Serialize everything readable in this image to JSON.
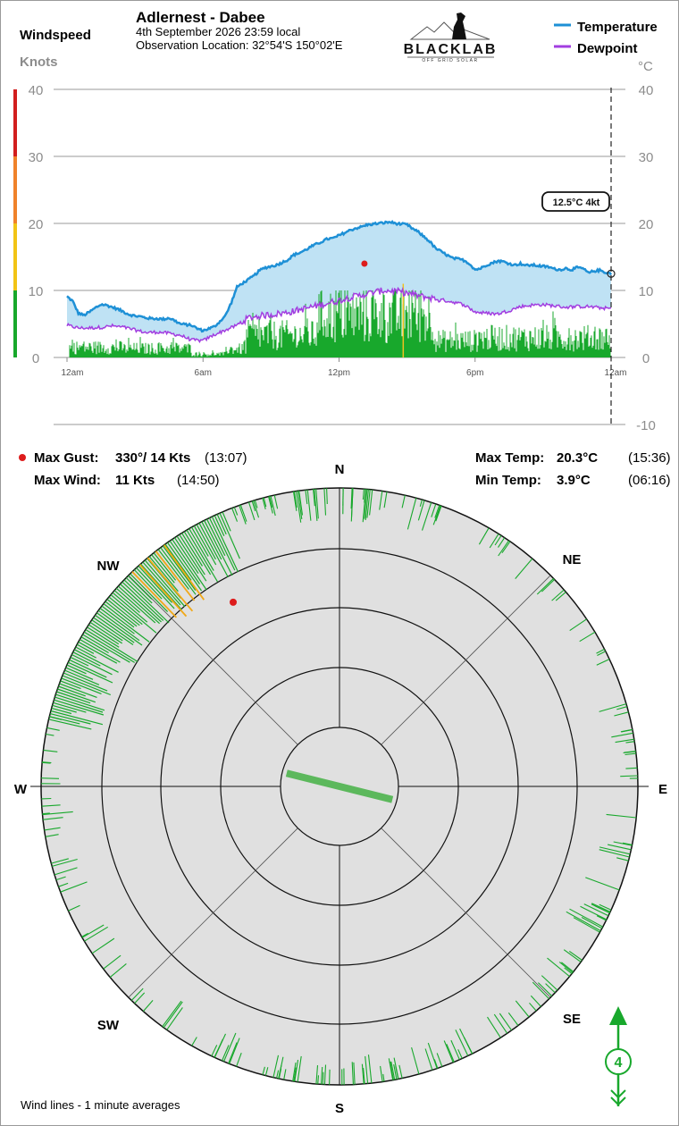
{
  "header": {
    "title": "Adlernest - Dabee",
    "date_line": "4th September 2026  23:59 local",
    "location_line": "Observation Location: 32°54'S 150°02'E",
    "left_axis_title": "Windspeed",
    "left_axis_unit": "Knots",
    "right_axis_unit": "°C"
  },
  "logo": {
    "name": "BLACKLAB",
    "tagline": "OFF GRID SOLAR"
  },
  "legend": [
    {
      "label": "Temperature",
      "color": "#1e90d6"
    },
    {
      "label": "Dewpoint",
      "color": "#a23ee0"
    }
  ],
  "colors": {
    "wind": "#18a82c",
    "gust_wind": "#f0a818",
    "temp_fill": "#bfe2f4",
    "temp_line": "#1e90d6",
    "dew_line": "#a23ee0",
    "gust_dot": "#dd1c1c",
    "rose_bg": "#e0e0e0"
  },
  "chart_data": [
    {
      "type": "area",
      "series": [
        {
          "name": "Temperature",
          "unit": "°C",
          "x_hours": [
            0,
            0.25,
            0.5,
            0.75,
            1,
            1.25,
            1.5,
            1.75,
            2,
            2.25,
            2.5,
            2.75,
            3,
            3.25,
            3.5,
            3.75,
            4,
            4.25,
            4.5,
            4.75,
            5,
            5.25,
            5.5,
            5.75,
            6,
            6.25,
            6.5,
            6.75,
            7,
            7.25,
            7.5,
            7.75,
            8,
            8.25,
            8.5,
            8.75,
            9,
            9.25,
            9.5,
            9.75,
            10,
            10.25,
            10.5,
            10.75,
            11,
            11.25,
            11.5,
            11.75,
            12,
            12.25,
            12.5,
            12.75,
            13,
            13.25,
            13.5,
            13.75,
            14,
            14.25,
            14.5,
            14.75,
            15,
            15.25,
            15.5,
            15.75,
            16,
            16.25,
            16.5,
            16.75,
            17,
            17.25,
            17.5,
            17.75,
            18,
            18.25,
            18.5,
            18.75,
            19,
            19.25,
            19.5,
            19.75,
            20,
            20.25,
            20.5,
            20.75,
            21,
            21.25,
            21.5,
            21.75,
            22,
            22.25,
            22.5,
            22.75,
            23,
            23.25,
            23.5,
            23.75,
            24
          ],
          "values": [
            9.1,
            8.4,
            6.6,
            6.3,
            6.8,
            7.4,
            7.9,
            7.8,
            7.5,
            7.2,
            6.8,
            6.4,
            6.2,
            6.1,
            5.9,
            5.8,
            5.8,
            5.7,
            5.9,
            5.5,
            5.0,
            4.9,
            4.8,
            4.3,
            4.0,
            4.3,
            4.6,
            5.4,
            6.3,
            8.2,
            10.5,
            11.1,
            11.6,
            12.2,
            13.0,
            13.4,
            13.6,
            13.8,
            14.2,
            14.6,
            15.3,
            15.6,
            16.0,
            16.5,
            16.9,
            17.3,
            17.7,
            17.8,
            18.2,
            18.6,
            19.0,
            19.3,
            19.5,
            19.8,
            19.9,
            20.0,
            20.1,
            20.2,
            20.0,
            19.9,
            19.8,
            19.2,
            18.7,
            18.0,
            17.3,
            16.3,
            15.8,
            15.3,
            14.8,
            14.7,
            14.5,
            14.0,
            13.1,
            13.3,
            13.8,
            14.1,
            14.4,
            14.3,
            14.0,
            13.8,
            14.0,
            13.7,
            13.8,
            13.7,
            13.6,
            13.5,
            13.2,
            13.1,
            13.3,
            13.1,
            13.4,
            13.3,
            12.6,
            12.9,
            13.0,
            12.7,
            12.5
          ]
        },
        {
          "name": "Dewpoint",
          "unit": "°C",
          "x_hours": [
            0,
            0.5,
            1,
            1.5,
            2,
            2.5,
            3,
            3.5,
            4,
            4.5,
            5,
            5.5,
            6,
            6.5,
            7,
            7.5,
            8,
            8.5,
            9,
            9.5,
            10,
            10.5,
            11,
            11.5,
            12,
            12.5,
            13,
            13.5,
            14,
            14.5,
            15,
            15.5,
            16,
            16.5,
            17,
            17.5,
            18,
            18.5,
            19,
            19.5,
            20,
            20.5,
            21,
            21.5,
            22,
            22.5,
            23,
            23.5,
            24
          ],
          "values": [
            4.8,
            4.4,
            4.4,
            4.5,
            4.7,
            4.5,
            4.1,
            3.7,
            3.8,
            3.6,
            3.3,
            2.6,
            2.5,
            3.4,
            4.1,
            4.8,
            5.9,
            6.2,
            6.4,
            6.6,
            6.9,
            7.3,
            7.7,
            8.1,
            8.5,
            9.0,
            9.3,
            9.7,
            10.0,
            9.9,
            9.6,
            9.2,
            8.9,
            8.6,
            8.3,
            7.9,
            6.8,
            6.6,
            6.5,
            7.0,
            7.6,
            7.8,
            7.9,
            7.7,
            7.5,
            7.6,
            7.6,
            7.4,
            7.3
          ]
        }
      ],
      "y_left_unit": "Knots",
      "y_left_range": [
        0,
        40
      ],
      "y_right_unit": "°C",
      "y_right_range": [
        -10,
        40
      ],
      "x_tick_labels": [
        "12am",
        "6am",
        "12pm",
        "6pm",
        "12am"
      ],
      "y_left_ticks": [
        "0",
        "10",
        "20",
        "30",
        "40"
      ],
      "y_right_ticks": [
        "-10",
        "0",
        "10",
        "20",
        "30",
        "40"
      ],
      "wind_color_scale": [
        {
          "from": 0,
          "to": 10,
          "color": "#18a82c"
        },
        {
          "from": 10,
          "to": 20,
          "color": "#f2c416"
        },
        {
          "from": 20,
          "to": 30,
          "color": "#f0822a"
        },
        {
          "from": 30,
          "to": 40,
          "color": "#d21e1e"
        }
      ],
      "wind_bars": {
        "name": "Windspeed",
        "unit": "Knots",
        "segments": [
          {
            "from_hour": 0.1,
            "to_hour": 2.5,
            "level": 1.8
          },
          {
            "from_hour": 2.5,
            "to_hour": 5.5,
            "level": 1.6
          },
          {
            "from_hour": 5.5,
            "to_hour": 7.0,
            "level": 0.6
          },
          {
            "from_hour": 7.0,
            "to_hour": 7.9,
            "level": 1.5
          },
          {
            "from_hour": 7.9,
            "to_hour": 11.0,
            "level": 4.0
          },
          {
            "from_hour": 11.0,
            "to_hour": 16.2,
            "level": 7.5
          },
          {
            "from_hour": 16.2,
            "to_hour": 18.2,
            "level": 3.0
          },
          {
            "from_hour": 18.2,
            "to_hour": 24.0,
            "level": 3.5
          }
        ]
      },
      "max_wind_marker": {
        "hour": 14.83,
        "value": 11
      },
      "max_gust_marker": {
        "hour": 13.12,
        "value": 14
      },
      "current_callout": {
        "text": "12.5°C  4kt",
        "hour": 24,
        "temp": 12.5
      }
    },
    {
      "type": "wind-rose",
      "directions": [
        "N",
        "NE",
        "E",
        "SE",
        "S",
        "SW",
        "W",
        "NW"
      ],
      "ring_scale_kts": [
        0,
        2,
        4,
        6,
        8,
        10
      ],
      "dense_sector_deg": [
        283,
        337
      ],
      "gust_sector_deg": [
        316,
        324
      ],
      "mean_wind": {
        "direction_deg": 104,
        "speed_kts": 4
      },
      "max_gust": {
        "direction_deg": 330,
        "speed_kts": 14
      },
      "current_wind_kts": 4
    }
  ],
  "summary": {
    "max_gust_label": "Max Gust:",
    "max_gust_value": "330°/  14 Kts",
    "max_gust_time": "(13:07)",
    "max_wind_label": "Max Wind:",
    "max_wind_value": "11 Kts",
    "max_wind_time": "(14:50)",
    "max_temp_label": "Max Temp:",
    "max_temp_value": "20.3°C",
    "max_temp_time": "(15:36)",
    "min_temp_label": "Min Temp:",
    "min_temp_value": "3.9°C",
    "min_temp_time": "(06:16)"
  },
  "footer": {
    "note": "Wind lines - 1 minute averages",
    "current_speed": "4"
  }
}
